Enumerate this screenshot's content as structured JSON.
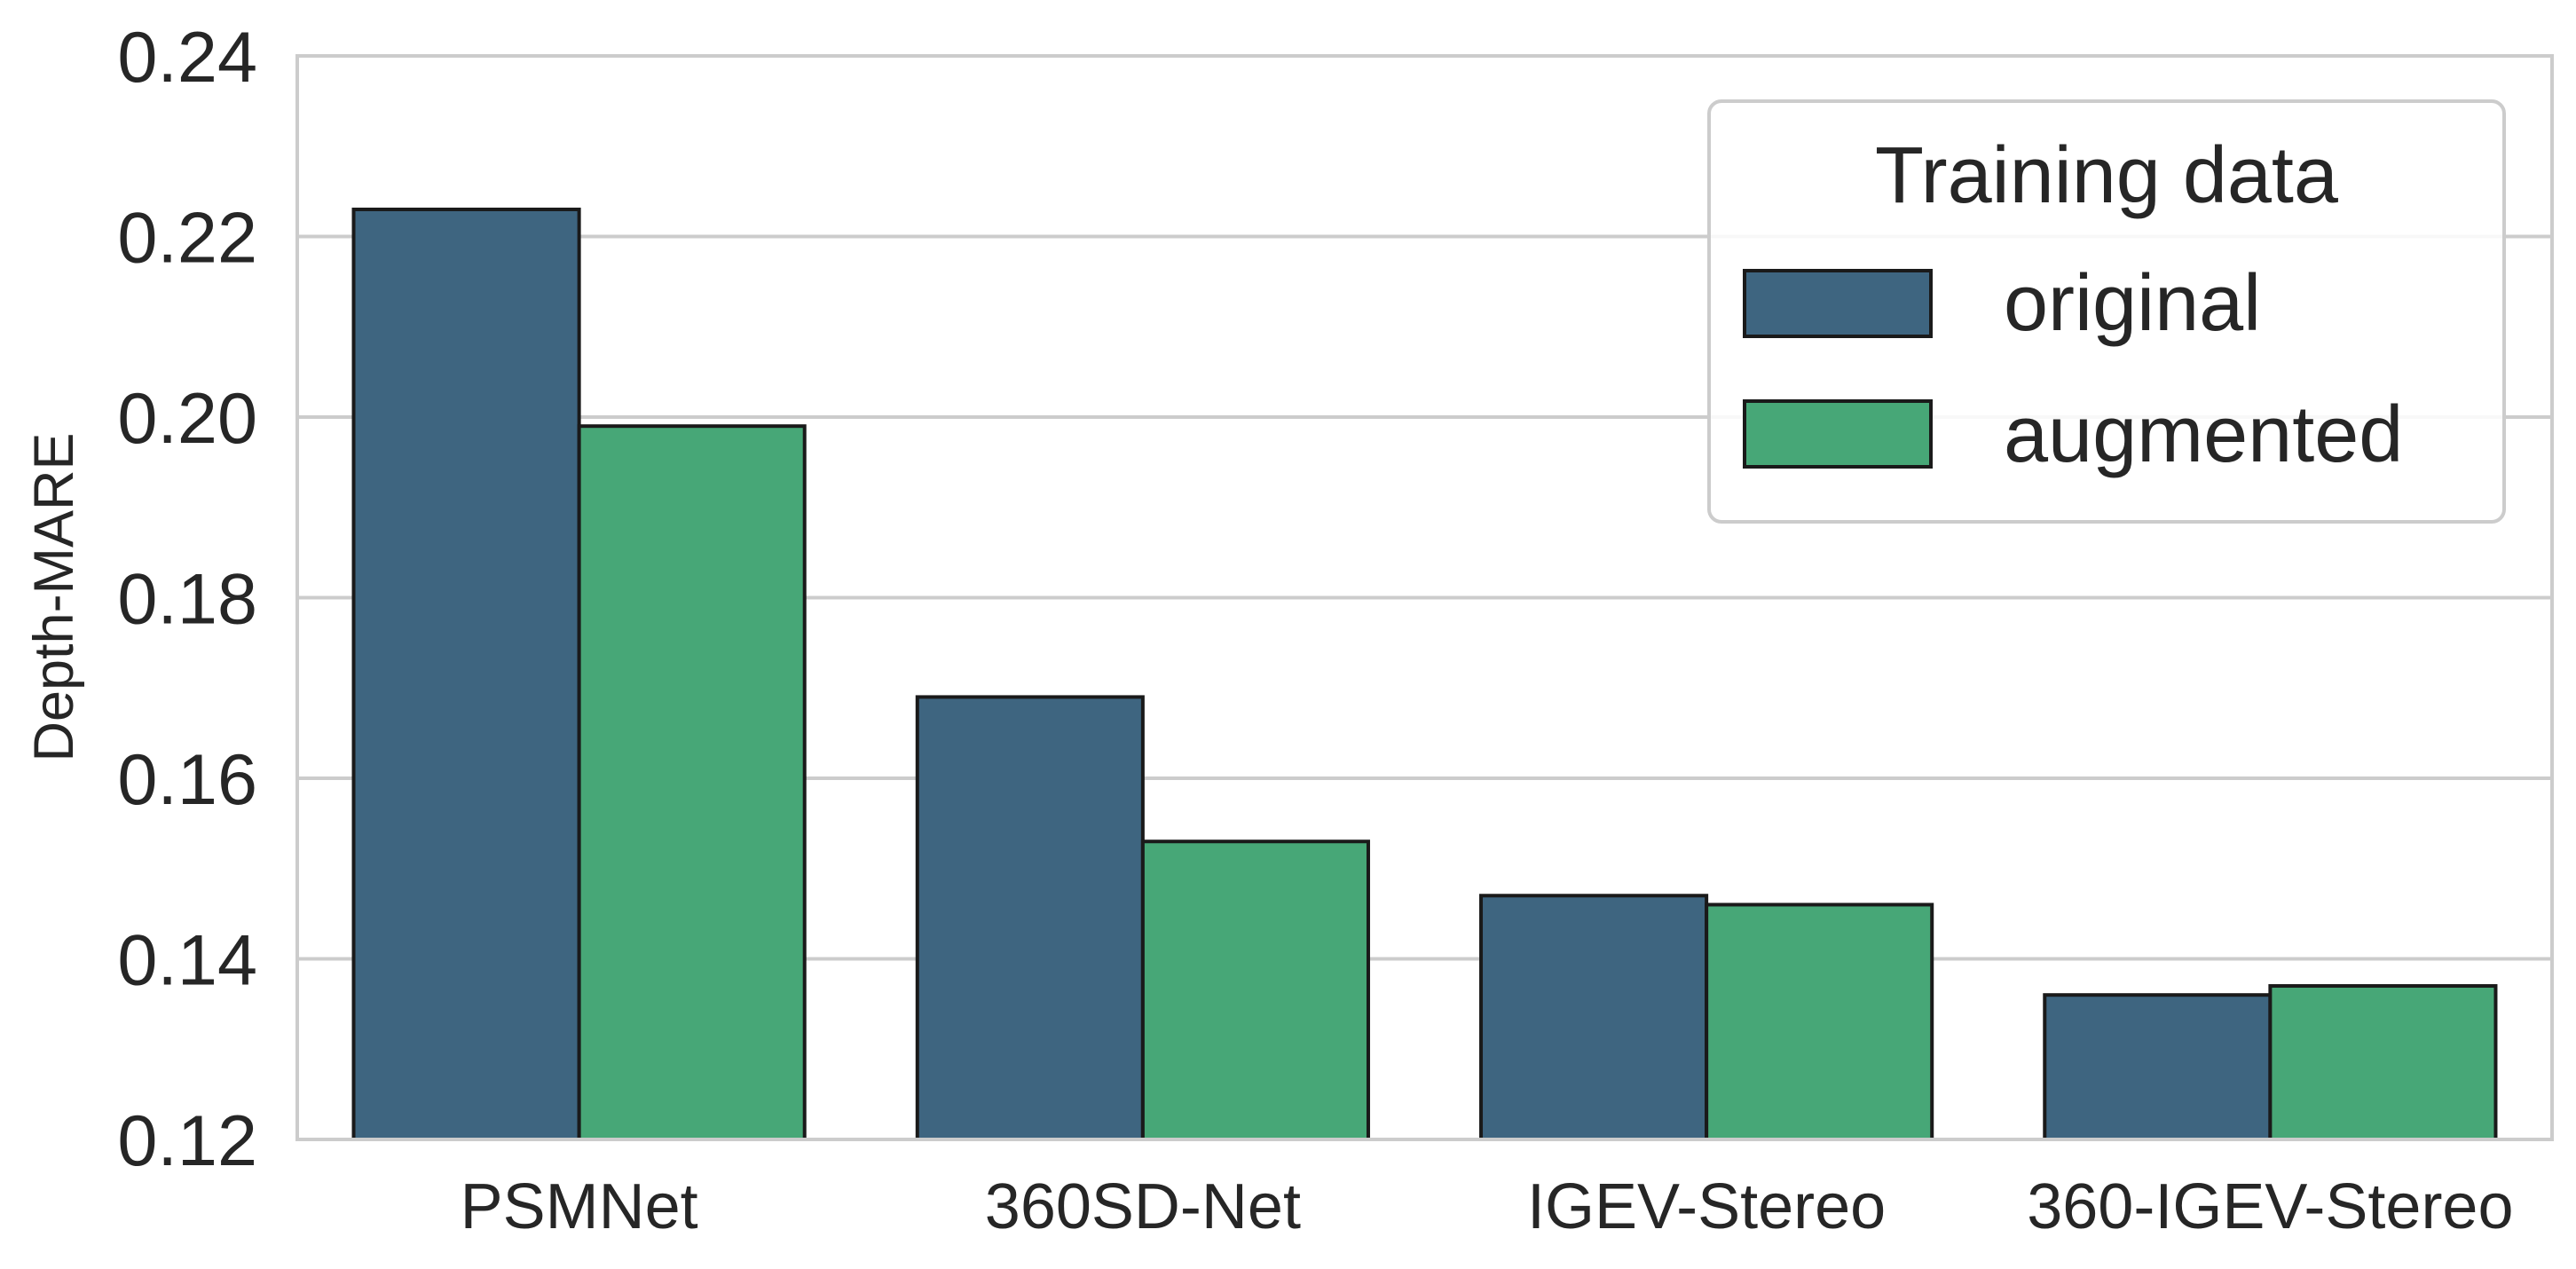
{
  "chart_data": {
    "type": "bar",
    "categories": [
      "PSMNet",
      "360SD-Net",
      "IGEV-Stereo",
      "360-IGEV-Stereo"
    ],
    "series": [
      {
        "name": "original",
        "values": [
          0.223,
          0.169,
          0.147,
          0.136
        ],
        "color": "#3e6580"
      },
      {
        "name": "augmented",
        "values": [
          0.199,
          0.153,
          0.146,
          0.137
        ],
        "color": "#47a777"
      }
    ],
    "xlabel": "",
    "ylabel": "Depth-MARE",
    "ylim": [
      0.12,
      0.24
    ],
    "yticks": [
      "0.12",
      "0.14",
      "0.16",
      "0.18",
      "0.20",
      "0.22",
      "0.24"
    ],
    "grid": "horizontal",
    "legend": {
      "title": "Training data",
      "placement": "top-right"
    }
  }
}
